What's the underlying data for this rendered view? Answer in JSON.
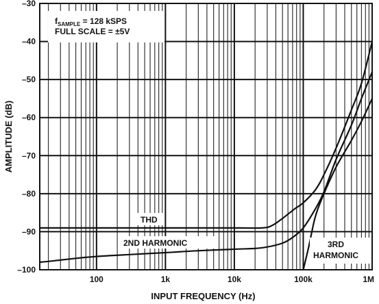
{
  "chart_data": {
    "type": "line",
    "x_scale": "log",
    "y_scale": "linear",
    "xlim": [
      15,
      1000000
    ],
    "ylim": [
      -100,
      -30
    ],
    "xlabel": "INPUT FREQUENCY (Hz)",
    "ylabel": "AMPLITUDE (dB)",
    "grid": true,
    "y_ticks": [
      -30,
      -40,
      -50,
      -60,
      -70,
      -80,
      -90,
      -100
    ],
    "y_tick_labels": [
      "–30",
      "–40",
      "–50",
      "–60",
      "–70",
      "–80",
      "–90",
      "–100"
    ],
    "x_ticks": [
      100,
      1000,
      10000,
      100000,
      1000000
    ],
    "x_tick_labels": [
      "100",
      "1k",
      "10k",
      "100k",
      "1M"
    ],
    "annotation": {
      "line1_prefix": "f",
      "line1_subscript": "SAMPLE",
      "line1_rest": " = 128 kSPS",
      "line2": "FULL SCALE = ±5V"
    },
    "series": [
      {
        "name": "THD",
        "label_lines": [
          "THD"
        ],
        "color": "#111111",
        "points": [
          [
            15,
            -89
          ],
          [
            100,
            -89
          ],
          [
            1000,
            -89
          ],
          [
            10000,
            -89
          ],
          [
            25000,
            -89
          ],
          [
            35000,
            -88.4
          ],
          [
            50000,
            -86.5
          ],
          [
            75000,
            -84
          ],
          [
            100000,
            -82.4
          ],
          [
            150000,
            -79
          ],
          [
            200000,
            -75
          ],
          [
            300000,
            -68
          ],
          [
            500000,
            -58
          ],
          [
            700000,
            -51
          ],
          [
            1000000,
            -40
          ]
        ]
      },
      {
        "name": "2ND HARMONIC",
        "label_lines": [
          "2ND HARMONIC"
        ],
        "color": "#111111",
        "points": [
          [
            15,
            -98
          ],
          [
            20,
            -97.8
          ],
          [
            50,
            -97
          ],
          [
            100,
            -96.5
          ],
          [
            300,
            -96
          ],
          [
            1000,
            -95.5
          ],
          [
            3000,
            -95
          ],
          [
            10000,
            -94.6
          ],
          [
            20000,
            -94.4
          ],
          [
            30000,
            -94
          ],
          [
            50000,
            -93
          ],
          [
            70000,
            -91.5
          ],
          [
            100000,
            -89
          ],
          [
            150000,
            -84
          ],
          [
            200000,
            -79.5
          ],
          [
            300000,
            -71
          ],
          [
            500000,
            -62
          ],
          [
            700000,
            -55
          ],
          [
            1000000,
            -48
          ]
        ]
      },
      {
        "name": "3RD HARMONIC",
        "label_lines": [
          "3RD",
          "HARMONIC"
        ],
        "color": "#111111",
        "points": [
          [
            100000,
            -100
          ],
          [
            120000,
            -94
          ],
          [
            150000,
            -86
          ],
          [
            200000,
            -80
          ],
          [
            300000,
            -73
          ],
          [
            500000,
            -66
          ],
          [
            700000,
            -61
          ],
          [
            1000000,
            -55
          ]
        ]
      }
    ]
  }
}
